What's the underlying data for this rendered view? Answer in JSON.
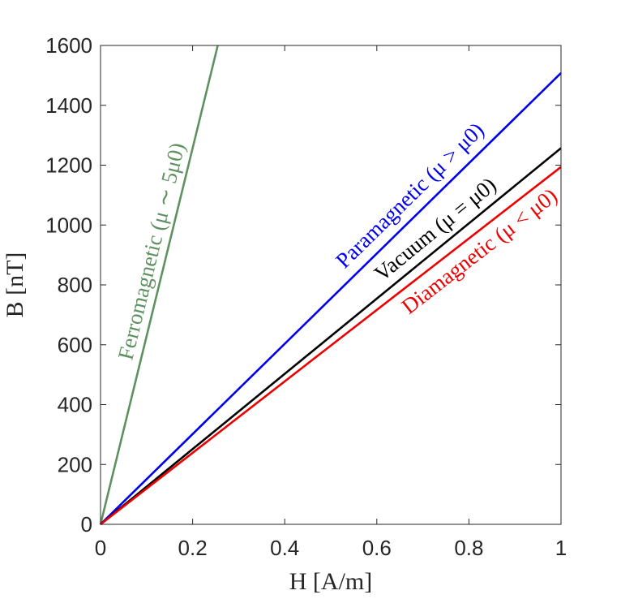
{
  "chart_data": {
    "type": "line",
    "title": "",
    "xlabel": "H [A/m]",
    "ylabel": "B [nT]",
    "xlim": [
      0,
      1
    ],
    "ylim": [
      0,
      1600
    ],
    "xticks": [
      0,
      0.2,
      0.4,
      0.6,
      0.8,
      1
    ],
    "xtick_labels": [
      "0",
      "0.2",
      "0.4",
      "0.6",
      "0.8",
      "1"
    ],
    "yticks": [
      0,
      200,
      400,
      600,
      800,
      1000,
      1200,
      1400,
      1600
    ],
    "ytick_labels": [
      "0",
      "200",
      "400",
      "600",
      "800",
      "1000",
      "1200",
      "1400",
      "1600"
    ],
    "grid": false,
    "legend": "none",
    "series": [
      {
        "label": "Ferromagnetic (μ ∼ 5μ0)",
        "color": "#5f9160",
        "x": [
          0,
          0.2546
        ],
        "y": [
          0,
          1600
        ]
      },
      {
        "label": "Paramagnetic (μ > μ0)",
        "color": "#0000ee",
        "x": [
          0,
          1
        ],
        "y": [
          0,
          1508
        ]
      },
      {
        "label": "Vacuum (μ = μ0)",
        "color": "#000000",
        "x": [
          0,
          1
        ],
        "y": [
          0,
          1257
        ]
      },
      {
        "label": "Diamagnetic (μ < μ0)",
        "color": "#ee0000",
        "x": [
          0,
          1
        ],
        "y": [
          0,
          1194
        ]
      }
    ]
  }
}
